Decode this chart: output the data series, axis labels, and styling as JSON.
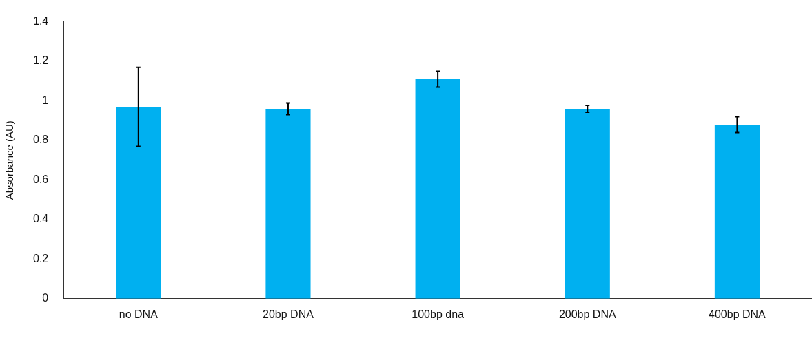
{
  "chart_data": {
    "type": "bar",
    "ylabel": "Absorbance (AU)",
    "categories": [
      "no DNA",
      "20bp DNA",
      "100bp dna",
      "200bp DNA",
      "400bp DNA"
    ],
    "values": [
      0.97,
      0.96,
      1.11,
      0.96,
      0.88
    ],
    "errors": [
      0.2,
      0.03,
      0.04,
      0.017,
      0.04
    ],
    "color": "#00b0f0",
    "ylim": [
      0,
      1.4
    ],
    "yticks": [
      0,
      0.2,
      0.4,
      0.6,
      0.8,
      1,
      1.2,
      1.4
    ],
    "grid": false,
    "legend": false
  }
}
